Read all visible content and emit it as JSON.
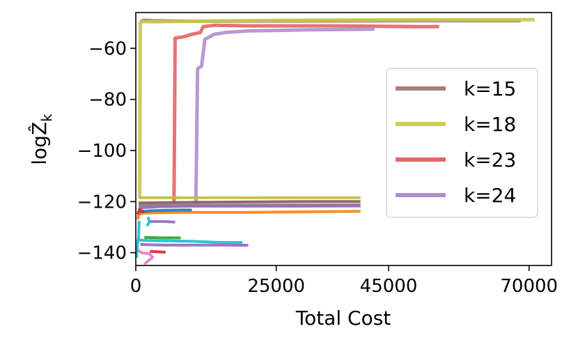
{
  "chart_data": {
    "type": "line",
    "title": "",
    "xlabel": "Total Cost",
    "ylabel": "log",
    "ylabel_symbol": "Ẑ",
    "ylabel_sub": "k",
    "xlim": [
      0,
      74000
    ],
    "ylim": [
      -145,
      -46
    ],
    "x_ticks": [
      0,
      25000,
      45000,
      70000
    ],
    "x_tick_labels": [
      "0",
      "25000",
      "45000",
      "70000"
    ],
    "y_ticks": [
      -60,
      -80,
      -100,
      -120,
      -140
    ],
    "y_tick_labels": [
      "−60",
      "−80",
      "−100",
      "−120",
      "−140"
    ],
    "grid": false,
    "legend_position": "right",
    "legend": [
      {
        "label": "k=15",
        "color": "#a67f76"
      },
      {
        "label": "k=18",
        "color": "#cccc55"
      },
      {
        "label": "k=23",
        "color": "#e36466"
      },
      {
        "label": "k=24",
        "color": "#ad8fcf"
      }
    ],
    "series": [
      {
        "name": "k=15",
        "color": "#a67f76",
        "width": 5,
        "points": [
          [
            800,
            -49.5
          ],
          [
            1500,
            -49.0
          ],
          [
            3000,
            -49.2
          ],
          [
            10000,
            -49.4
          ],
          [
            30000,
            -49.3
          ],
          [
            60000,
            -49.2
          ],
          [
            68500,
            -49.2
          ]
        ]
      },
      {
        "name": "k=18",
        "color": "#c8c84a",
        "width": 5,
        "points": [
          [
            700,
            -118.5
          ],
          [
            800,
            -50
          ],
          [
            1100,
            -49.5
          ],
          [
            2500,
            -49.6
          ],
          [
            10000,
            -49.4
          ],
          [
            30000,
            -49.0
          ],
          [
            60000,
            -48.8
          ],
          [
            71000,
            -48.8
          ]
        ]
      },
      {
        "name": "k=23",
        "color": "#e36466",
        "width": 5,
        "points": [
          [
            6800,
            -120.5
          ],
          [
            7000,
            -56
          ],
          [
            8500,
            -55.5
          ],
          [
            10000,
            -54.5
          ],
          [
            11500,
            -53.8
          ],
          [
            12000,
            -51.5
          ],
          [
            14000,
            -51.0
          ],
          [
            20000,
            -51.2
          ],
          [
            35000,
            -51.2
          ],
          [
            50000,
            -51.5
          ],
          [
            54000,
            -51.5
          ]
        ]
      },
      {
        "name": "k=24",
        "color": "#ad8fcf",
        "width": 5,
        "points": [
          [
            10700,
            -120.5
          ],
          [
            11000,
            -68
          ],
          [
            11700,
            -67
          ],
          [
            12300,
            -56.5
          ],
          [
            14000,
            -54.5
          ],
          [
            16000,
            -53.8
          ],
          [
            20000,
            -53.2
          ],
          [
            30000,
            -52.8
          ],
          [
            42500,
            -52.5
          ]
        ]
      },
      {
        "name": "",
        "color": "#bcbc3a",
        "width": 4,
        "points": [
          [
            500,
            -118.5
          ],
          [
            10000,
            -118.5
          ],
          [
            30000,
            -118.5
          ],
          [
            40000,
            -118.5
          ]
        ]
      },
      {
        "name": "",
        "color": "#8c564b",
        "width": 4,
        "points": [
          [
            500,
            -120.5
          ],
          [
            10000,
            -120.3
          ],
          [
            30000,
            -120.0
          ],
          [
            40000,
            -120.0
          ]
        ]
      },
      {
        "name": "",
        "color": "#7f7f7f",
        "width": 4,
        "points": [
          [
            500,
            -121.5
          ],
          [
            10000,
            -121.4
          ],
          [
            30000,
            -121.3
          ],
          [
            40000,
            -121.3
          ]
        ]
      },
      {
        "name": "",
        "color": "#9467bd",
        "width": 4,
        "points": [
          [
            500,
            -122.5
          ],
          [
            4000,
            -122.0
          ],
          [
            10000,
            -121.8
          ],
          [
            20000,
            -121.8
          ],
          [
            30000,
            -121.8
          ],
          [
            40000,
            -121.7
          ]
        ]
      },
      {
        "name": "",
        "color": "#ff7f0e",
        "width": 4,
        "points": [
          [
            400,
            -127
          ],
          [
            500,
            -125
          ],
          [
            1500,
            -124.5
          ],
          [
            8000,
            -124.2
          ],
          [
            20000,
            -124.2
          ],
          [
            30000,
            -124.0
          ],
          [
            40000,
            -123.8
          ]
        ]
      },
      {
        "name": "",
        "color": "#1f77b4",
        "width": 4,
        "points": [
          [
            500,
            -124
          ],
          [
            3000,
            -123.5
          ],
          [
            8000,
            -123.3
          ],
          [
            10000,
            -123.3
          ]
        ]
      },
      {
        "name": "",
        "color": "#d62728",
        "width": 4,
        "points": [
          [
            300,
            -125
          ],
          [
            700,
            -123
          ],
          [
            1500,
            -124.2
          ]
        ]
      },
      {
        "name": "",
        "color": "#9467bd",
        "width": 4,
        "points": [
          [
            2500,
            -127.8
          ],
          [
            5000,
            -127.8
          ],
          [
            7000,
            -128.0
          ]
        ]
      },
      {
        "name": "",
        "color": "#17becf",
        "width": 4,
        "points": [
          [
            2200,
            -126
          ],
          [
            2400,
            -128
          ],
          [
            2000,
            -129.5
          ]
        ]
      },
      {
        "name": "",
        "color": "#17becf",
        "width": 4,
        "points": [
          [
            600,
            -127.5
          ],
          [
            500,
            -134
          ],
          [
            300,
            -136.5
          ],
          [
            200,
            -140
          ]
        ]
      },
      {
        "name": "",
        "color": "#2ca02c",
        "width": 4,
        "points": [
          [
            1500,
            -134
          ],
          [
            5000,
            -134.2
          ],
          [
            8000,
            -134.2
          ]
        ]
      },
      {
        "name": "",
        "color": "#17becf",
        "width": 4,
        "points": [
          [
            400,
            -135
          ],
          [
            2000,
            -135.2
          ],
          [
            10000,
            -135.5
          ],
          [
            15000,
            -136.0
          ],
          [
            19000,
            -136.0
          ]
        ]
      },
      {
        "name": "",
        "color": "#9467bd",
        "width": 4,
        "points": [
          [
            800,
            -136.8
          ],
          [
            5000,
            -137.0
          ],
          [
            15000,
            -137.0
          ],
          [
            20000,
            -137.1
          ]
        ]
      },
      {
        "name": "",
        "color": "#e377c2",
        "width": 4,
        "points": [
          [
            400,
            -139
          ],
          [
            1000,
            -140
          ],
          [
            2500,
            -140.5
          ],
          [
            3000,
            -141.8
          ],
          [
            1500,
            -144.5
          ]
        ]
      },
      {
        "name": "",
        "color": "#d62728",
        "width": 4,
        "points": [
          [
            2500,
            -139.5
          ],
          [
            5000,
            -139.8
          ],
          [
            5300,
            -139.8
          ]
        ]
      },
      {
        "name": "",
        "color": "#17becf",
        "width": 4,
        "points": [
          [
            100,
            -138
          ],
          [
            200,
            -142
          ]
        ]
      }
    ]
  }
}
